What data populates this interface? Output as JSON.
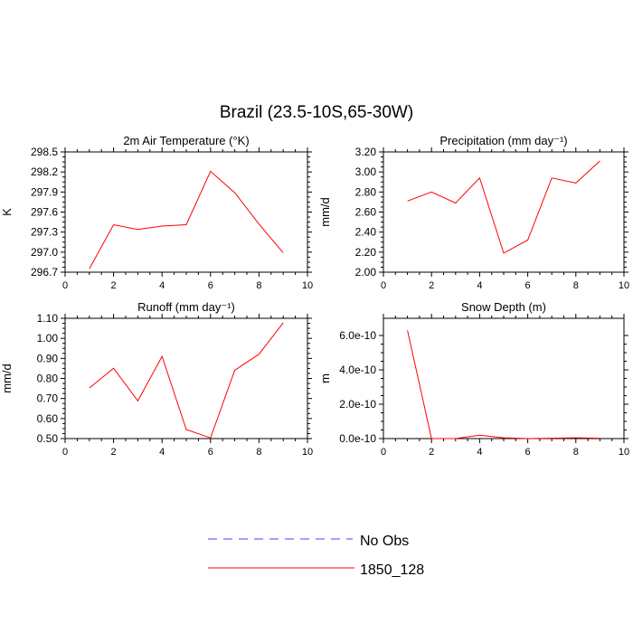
{
  "title": "Brazil (23.5-10S,65-30W)",
  "line_color": "#ff0000",
  "obs_color": "#4040ff",
  "legend": [
    {
      "label": "No Obs",
      "style": "dashed"
    },
    {
      "label": "1850_128",
      "style": "solid"
    }
  ],
  "chart_data": [
    {
      "type": "line",
      "title": "2m Air Temperature (°K)",
      "ylabel": "K",
      "xlim": [
        0,
        10
      ],
      "ylim": [
        296.7,
        298.5
      ],
      "xticks": [
        "0",
        "2",
        "4",
        "6",
        "8",
        "10"
      ],
      "yticks": [
        "296.7",
        "297.0",
        "297.3",
        "297.6",
        "297.9",
        "298.2",
        "298.5"
      ],
      "series": [
        {
          "name": "1850_128",
          "x": [
            1,
            2,
            3,
            4,
            5,
            6,
            7,
            8,
            9
          ],
          "y": [
            296.75,
            297.41,
            297.34,
            297.39,
            297.41,
            298.21,
            297.89,
            297.42,
            296.99
          ]
        }
      ]
    },
    {
      "type": "line",
      "title": "Precipitation (mm day⁻¹)",
      "ylabel": "mm/d",
      "xlim": [
        0,
        10
      ],
      "ylim": [
        2.0,
        3.2
      ],
      "xticks": [
        "0",
        "2",
        "4",
        "6",
        "8",
        "10"
      ],
      "yticks": [
        "2.00",
        "2.20",
        "2.40",
        "2.60",
        "2.80",
        "3.00",
        "3.20"
      ],
      "series": [
        {
          "name": "1850_128",
          "x": [
            1,
            2,
            3,
            4,
            5,
            6,
            7,
            8,
            9
          ],
          "y": [
            2.71,
            2.8,
            2.69,
            2.94,
            2.19,
            2.32,
            2.94,
            2.89,
            3.11
          ]
        }
      ]
    },
    {
      "type": "line",
      "title": "Runoff (mm day⁻¹)",
      "ylabel": "mm/d",
      "xlim": [
        0,
        10
      ],
      "ylim": [
        0.5,
        1.1
      ],
      "xticks": [
        "0",
        "2",
        "4",
        "6",
        "8",
        "10"
      ],
      "yticks": [
        "0.50",
        "0.60",
        "0.70",
        "0.80",
        "0.90",
        "1.00",
        "1.10"
      ],
      "series": [
        {
          "name": "1850_128",
          "x": [
            1,
            2,
            3,
            4,
            5,
            6,
            7,
            8,
            9
          ],
          "y": [
            0.752,
            0.851,
            0.688,
            0.91,
            0.545,
            0.503,
            0.841,
            0.921,
            1.078
          ]
        }
      ]
    },
    {
      "type": "line",
      "title": "Snow Depth (m)",
      "ylabel": "m",
      "xlim": [
        0,
        10
      ],
      "ylim": [
        0,
        7e-10
      ],
      "xticks": [
        "0",
        "2",
        "4",
        "6",
        "8",
        "10"
      ],
      "yticks": [
        "0.0e-10",
        "2.0e-10",
        "4.0e-10",
        "6.0e-10"
      ],
      "ytick_values": [
        0,
        2e-10,
        4e-10,
        6e-10
      ],
      "series": [
        {
          "name": "1850_128",
          "x": [
            1,
            2,
            3,
            4,
            5,
            6,
            7,
            8,
            9
          ],
          "y": [
            6.3e-10,
            0.0,
            0.0,
            2e-11,
            5e-12,
            0.0,
            2e-12,
            5e-12,
            2e-12
          ]
        }
      ]
    }
  ]
}
